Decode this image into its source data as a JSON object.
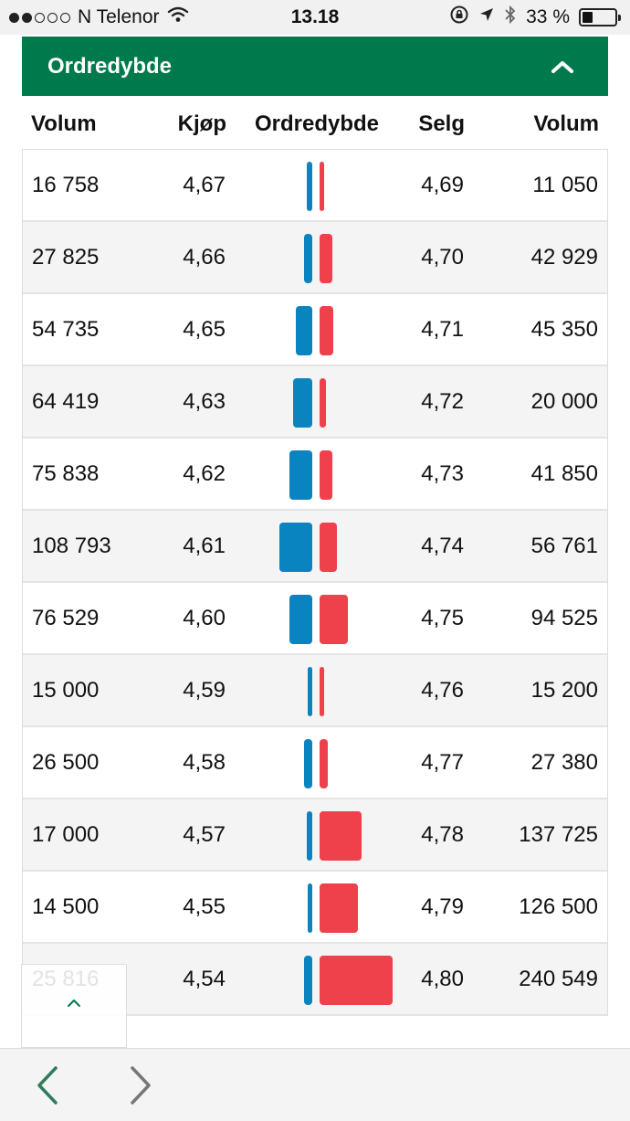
{
  "status_bar": {
    "carrier": "N Telenor",
    "time": "13.18",
    "battery_percent": "33 %",
    "battery_level": 0.33,
    "signal_bars_filled": 2,
    "signal_bars_total": 5
  },
  "panel": {
    "title": "Ordredybde",
    "collapse_icon": "chevron-up-icon"
  },
  "columns": {
    "buy_volume": "Volum",
    "bid": "Kjøp",
    "depth": "Ordredybde",
    "ask": "Selg",
    "sell_volume": "Volum"
  },
  "rows": [
    {
      "buy_volume": "16 758",
      "bid": "4,67",
      "ask": "4,69",
      "sell_volume": "11 050",
      "buy_qty": 16758,
      "sell_qty": 11050
    },
    {
      "buy_volume": "27 825",
      "bid": "4,66",
      "ask": "4,70",
      "sell_volume": "42 929",
      "buy_qty": 27825,
      "sell_qty": 42929
    },
    {
      "buy_volume": "54 735",
      "bid": "4,65",
      "ask": "4,71",
      "sell_volume": "45 350",
      "buy_qty": 54735,
      "sell_qty": 45350
    },
    {
      "buy_volume": "64 419",
      "bid": "4,63",
      "ask": "4,72",
      "sell_volume": "20 000",
      "buy_qty": 64419,
      "sell_qty": 20000
    },
    {
      "buy_volume": "75 838",
      "bid": "4,62",
      "ask": "4,73",
      "sell_volume": "41 850",
      "buy_qty": 75838,
      "sell_qty": 41850
    },
    {
      "buy_volume": "108 793",
      "bid": "4,61",
      "ask": "4,74",
      "sell_volume": "56 761",
      "buy_qty": 108793,
      "sell_qty": 56761
    },
    {
      "buy_volume": "76 529",
      "bid": "4,60",
      "ask": "4,75",
      "sell_volume": "94 525",
      "buy_qty": 76529,
      "sell_qty": 94525
    },
    {
      "buy_volume": "15 000",
      "bid": "4,59",
      "ask": "4,76",
      "sell_volume": "15 200",
      "buy_qty": 15000,
      "sell_qty": 15200
    },
    {
      "buy_volume": "26 500",
      "bid": "4,58",
      "ask": "4,77",
      "sell_volume": "27 380",
      "buy_qty": 26500,
      "sell_qty": 27380
    },
    {
      "buy_volume": "17 000",
      "bid": "4,57",
      "ask": "4,78",
      "sell_volume": "137 725",
      "buy_qty": 17000,
      "sell_qty": 137725
    },
    {
      "buy_volume": "14 500",
      "bid": "4,55",
      "ask": "4,79",
      "sell_volume": "126 500",
      "buy_qty": 14500,
      "sell_qty": 126500
    },
    {
      "buy_volume": "25 816",
      "bid": "4,54",
      "ask": "4,80",
      "sell_volume": "240 549",
      "buy_qty": 25816,
      "sell_qty": 240549
    }
  ],
  "scroll_top": {
    "icon": "chevron-up-icon"
  },
  "toolbar": {
    "back_icon": "chevron-left-icon",
    "forward_icon": "chevron-right-icon"
  },
  "colors": {
    "header_green": "#007a4d",
    "buy_blue": "#0a84c1",
    "sell_red": "#ee414c",
    "nav_back_green": "#2e7d5a",
    "nav_forward_gray": "#777777"
  }
}
